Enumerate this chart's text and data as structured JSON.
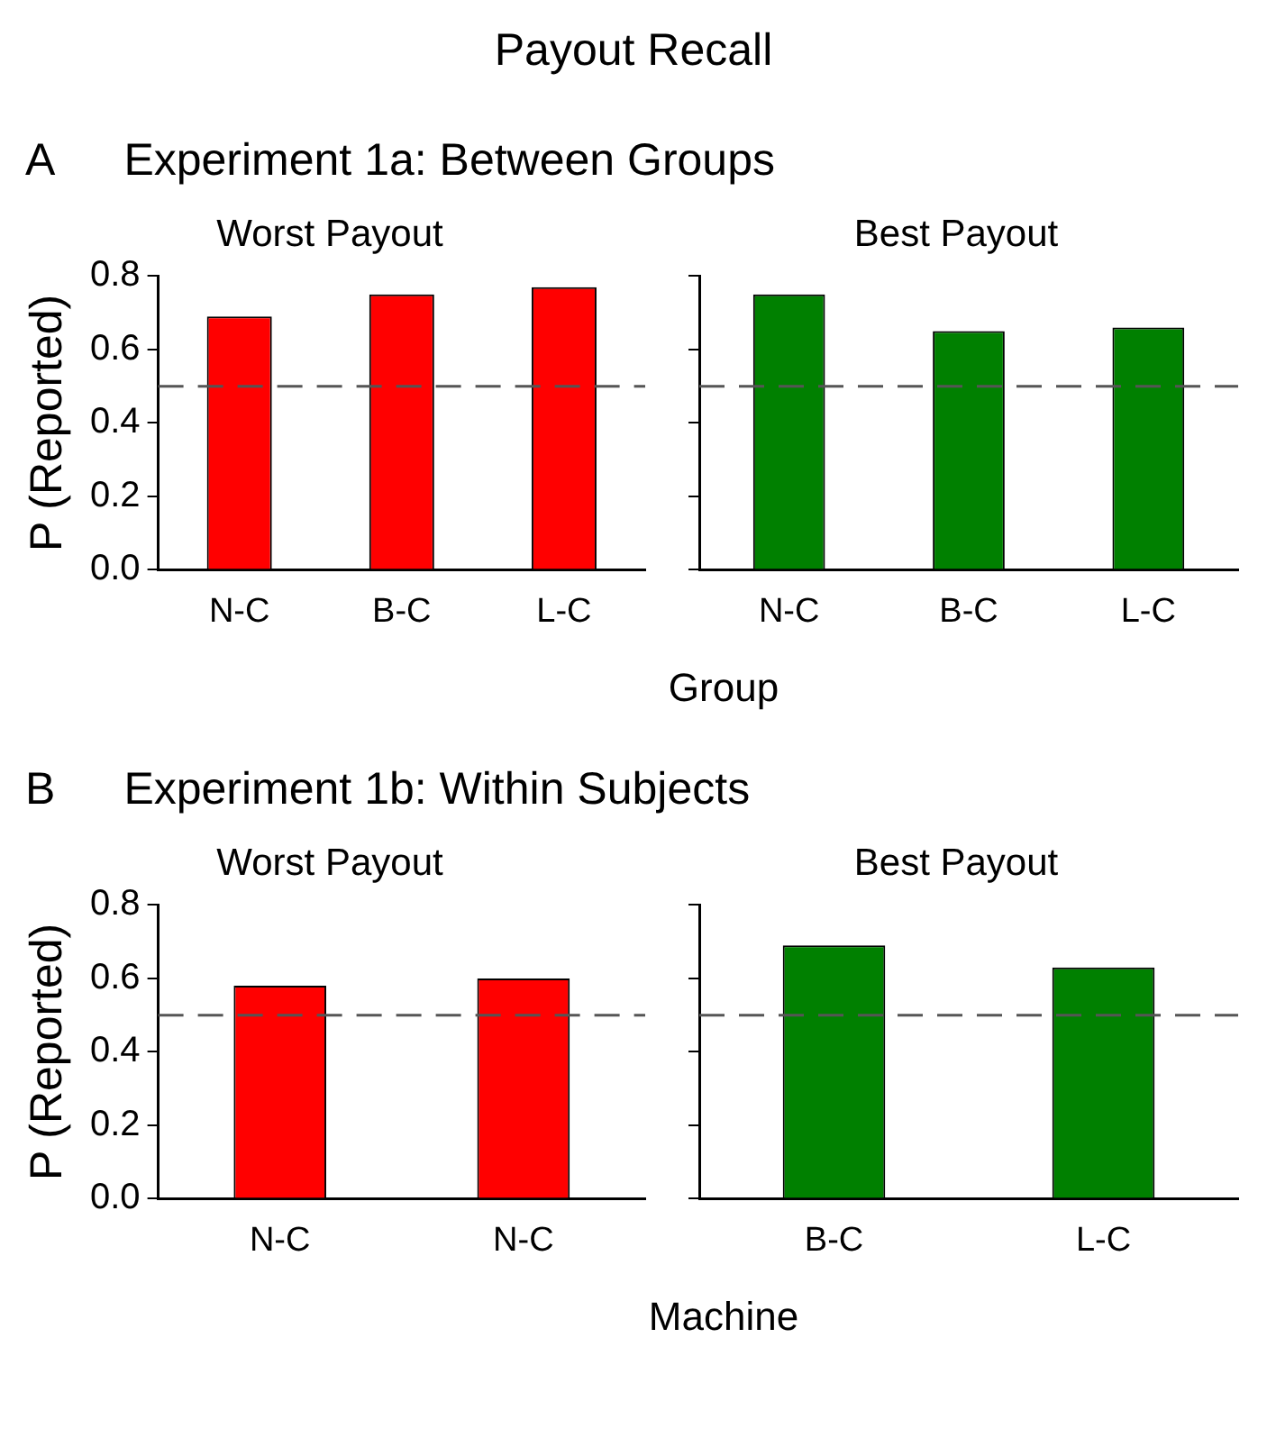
{
  "chart_data": [
    {
      "type": "bar",
      "title": "Worst Payout",
      "ylabel": "P (Reported)",
      "xlabel": "Group",
      "annotations": [
        "Payout Recall",
        "A",
        "Experiment 1a: Between Groups"
      ],
      "categories": [
        "N-C",
        "B-C",
        "L-C"
      ],
      "values": [
        0.69,
        0.75,
        0.77
      ],
      "color": "#ff0000",
      "ylim": [
        0,
        0.8
      ],
      "yticks": [
        {
          "value": 0,
          "label": "0.0"
        },
        0.2,
        0.4,
        0.6,
        0.8
      ],
      "ref_lines": [
        {
          "axis": "y",
          "value": 0.5,
          "color": "#555555",
          "line_style": "dashed"
        }
      ],
      "grid": false
    },
    {
      "type": "bar",
      "title": "Best Payout",
      "categories": [
        "N-C",
        "B-C",
        "L-C"
      ],
      "values": [
        0.75,
        0.65,
        0.66
      ],
      "color": "#008000",
      "ylim": [
        0,
        0.8
      ],
      "yticks": [
        0.0,
        0.2,
        0.4,
        0.6,
        0.8
      ],
      "tick_labels": "x",
      "ref_lines": [
        {
          "axis": "y",
          "value": 0.5,
          "color": "#555555",
          "line_style": "dashed"
        }
      ],
      "grid": false
    },
    {
      "type": "bar",
      "title": "Worst Payout",
      "ylabel": "P (Reported)",
      "xlabel": "Machine",
      "annotations": [
        "B",
        "Experiment 1b: Within Subjects"
      ],
      "categories": [
        "N-C",
        "N-C"
      ],
      "values": [
        0.58,
        0.6
      ],
      "color": "#ff0000",
      "ylim": [
        0,
        0.8
      ],
      "yticks": [
        {
          "value": 0,
          "label": "0.0"
        },
        0.2,
        0.4,
        0.6,
        0.8
      ],
      "ref_lines": [
        {
          "axis": "y",
          "value": 0.5,
          "color": "#555555",
          "line_style": "dashed"
        }
      ],
      "grid": false
    },
    {
      "type": "bar",
      "title": "Best Payout",
      "categories": [
        "B-C",
        "L-C"
      ],
      "values": [
        0.69,
        0.63
      ],
      "color": "#008000",
      "ylim": [
        0,
        0.8
      ],
      "yticks": [
        0.0,
        0.2,
        0.4,
        0.6,
        0.8
      ],
      "tick_labels": "x",
      "ref_lines": [
        {
          "axis": "y",
          "value": 0.5,
          "color": "#555555",
          "line_style": "dashed"
        }
      ],
      "grid": false
    }
  ]
}
